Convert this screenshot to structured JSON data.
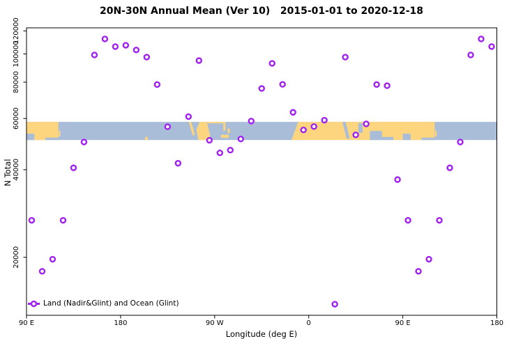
{
  "chart_data": {
    "type": "scatter",
    "title": "20N-30N Annual Mean (Ver 10)   2015-01-01 to 2020-12-18",
    "xlabel": "Longitude (deg E)",
    "ylabel": "N Total",
    "y_scale": "log",
    "grid": false,
    "x_axis": {
      "range_deg_continuous": [
        90,
        540
      ],
      "ticks": [
        {
          "lon": 90,
          "label": "90 E"
        },
        {
          "lon": 180,
          "label": "180"
        },
        {
          "lon": 270,
          "label": "90 W"
        },
        {
          "lon": 360,
          "label": "0"
        },
        {
          "lon": 450,
          "label": "90 E"
        },
        {
          "lon": 540,
          "label": "180"
        }
      ]
    },
    "y_axis": {
      "range": [
        12600,
        123000
      ],
      "ticks": [
        {
          "value": 20000,
          "label": "20000"
        },
        {
          "value": 40000,
          "label": "40000"
        },
        {
          "value": 60000,
          "label": "60000"
        },
        {
          "value": 80000,
          "label": "80000"
        },
        {
          "value": 100000,
          "label": "100000"
        },
        {
          "value": 120000,
          "label": "120000"
        }
      ]
    },
    "legend": {
      "label": "Land (Nadir&Glint) and Ocean (Glint)",
      "position": "bottom-left"
    },
    "colors": {
      "point": "#A020F0",
      "point_fill": "#FFFFFF",
      "land": "#FCD57E",
      "ocean": "#A9BDD9",
      "axis": "#000000"
    },
    "series": [
      {
        "name": "Land (Nadir&Glint) and Ocean (Glint)",
        "marker": "open-circle",
        "points": [
          [
            95,
            26800,
            "95 E"
          ],
          [
            105,
            17900,
            "105 E"
          ],
          [
            115,
            19700,
            "115 E"
          ],
          [
            125,
            26800,
            "125 E"
          ],
          [
            135,
            40600,
            "135 E"
          ],
          [
            145,
            49800,
            "145 E"
          ],
          [
            155,
            99200,
            "155 E"
          ],
          [
            165,
            112600,
            "165 E"
          ],
          [
            175,
            106000,
            "175 E"
          ],
          [
            185,
            107100,
            "175 W"
          ],
          [
            195,
            103200,
            "165 W"
          ],
          [
            205,
            97500,
            "155 W"
          ],
          [
            215,
            78500,
            "145 W"
          ],
          [
            225,
            56200,
            "135 W"
          ],
          [
            235,
            42100,
            "125 W"
          ],
          [
            245,
            60900,
            "115 W"
          ],
          [
            255,
            94900,
            "105 W"
          ],
          [
            265,
            50500,
            "95 W"
          ],
          [
            275,
            45700,
            "85 W"
          ],
          [
            285,
            46700,
            "75 W"
          ],
          [
            295,
            51000,
            "65 W"
          ],
          [
            305,
            58800,
            "55 W"
          ],
          [
            315,
            76100,
            "45 W"
          ],
          [
            325,
            92800,
            "35 W"
          ],
          [
            335,
            78600,
            "25 W"
          ],
          [
            345,
            63000,
            "15 W"
          ],
          [
            355,
            54800,
            "5 W"
          ],
          [
            365,
            56300,
            "5 E"
          ],
          [
            375,
            59200,
            "15 E"
          ],
          [
            385,
            13800,
            "25 E"
          ],
          [
            395,
            97500,
            "35 E"
          ],
          [
            405,
            52700,
            "45 E"
          ],
          [
            415,
            57500,
            "55 E"
          ],
          [
            425,
            78500,
            "65 E"
          ],
          [
            435,
            77800,
            "75 E"
          ],
          [
            445,
            37000,
            "85 E"
          ],
          [
            455,
            26800,
            "95 E"
          ],
          [
            465,
            17900,
            "105 E"
          ],
          [
            475,
            19700,
            "115 E"
          ],
          [
            485,
            26800,
            "125 E"
          ],
          [
            495,
            40600,
            "135 E"
          ],
          [
            505,
            49800,
            "145 E"
          ],
          [
            515,
            99200,
            "155 E"
          ],
          [
            525,
            112600,
            "165 E"
          ],
          [
            535,
            106000,
            "175 E"
          ]
        ]
      }
    ],
    "map_band": {
      "lat_range": [
        20,
        30
      ],
      "y_top_value": 58400,
      "y_bottom_value": 50600,
      "land": [
        {
          "type": "rect",
          "lon": [
            90,
            120.5
          ],
          "lat": [
            20,
            30
          ]
        },
        {
          "type": "rect",
          "lon": [
            120.9,
            122.4
          ],
          "lat": [
            22,
            25.2
          ]
        },
        {
          "type": "rect",
          "lon": [
            203.5,
            206
          ],
          "lat": [
            20,
            21.7
          ]
        },
        {
          "type": "poly",
          "pts": [
            [
              245.3,
              30
            ],
            [
              247.6,
              30
            ],
            [
              251,
              23.2
            ],
            [
              249.2,
              22.2
            ]
          ]
        },
        {
          "type": "poly",
          "pts": [
            [
              255.5,
              30
            ],
            [
              262.5,
              30
            ],
            [
              265.5,
              23
            ],
            [
              265.5,
              20
            ],
            [
              254.5,
              20
            ],
            [
              252.5,
              25.5
            ]
          ]
        },
        {
          "type": "rect",
          "lon": [
            262.5,
            279
          ],
          "lat": [
            29.2,
            30
          ]
        },
        {
          "type": "rect",
          "lon": [
            278.3,
            280.3
          ],
          "lat": [
            25.2,
            30
          ]
        },
        {
          "type": "rect",
          "lon": [
            276,
            283.5
          ],
          "lat": [
            21.2,
            22.9
          ]
        },
        {
          "type": "rect",
          "lon": [
            282.5,
            284.5
          ],
          "lat": [
            23.8,
            26.3
          ]
        },
        {
          "type": "poly",
          "pts": [
            [
              350,
              30
            ],
            [
              480.5,
              30
            ],
            [
              480.5,
              20
            ],
            [
              343.5,
              20
            ]
          ]
        },
        {
          "type": "rect",
          "lon": [
            480.9,
            482.4
          ],
          "lat": [
            22,
            25.2
          ]
        }
      ],
      "water_notches": [
        {
          "type": "rect",
          "lon": [
            90,
            97.5
          ],
          "lat": [
            20,
            23.5
          ]
        },
        {
          "type": "rect",
          "lon": [
            108,
            120.5
          ],
          "lat": [
            20,
            21.3
          ]
        },
        {
          "type": "poly",
          "pts": [
            [
              392.3,
              30
            ],
            [
              395.3,
              30
            ],
            [
              399.2,
              20.8
            ],
            [
              396.2,
              20.8
            ]
          ]
        },
        {
          "type": "rect",
          "lon": [
            407.5,
            411.5
          ],
          "lat": [
            24,
            29.3
          ]
        },
        {
          "type": "rect",
          "lon": [
            418.5,
            430
          ],
          "lat": [
            20,
            25
          ]
        },
        {
          "type": "rect",
          "lon": [
            430,
            441
          ],
          "lat": [
            20,
            21.7
          ]
        },
        {
          "type": "rect",
          "lon": [
            450,
            457.5
          ],
          "lat": [
            20,
            23.5
          ]
        },
        {
          "type": "rect",
          "lon": [
            468,
            480.5
          ],
          "lat": [
            20,
            21.3
          ]
        }
      ]
    }
  }
}
